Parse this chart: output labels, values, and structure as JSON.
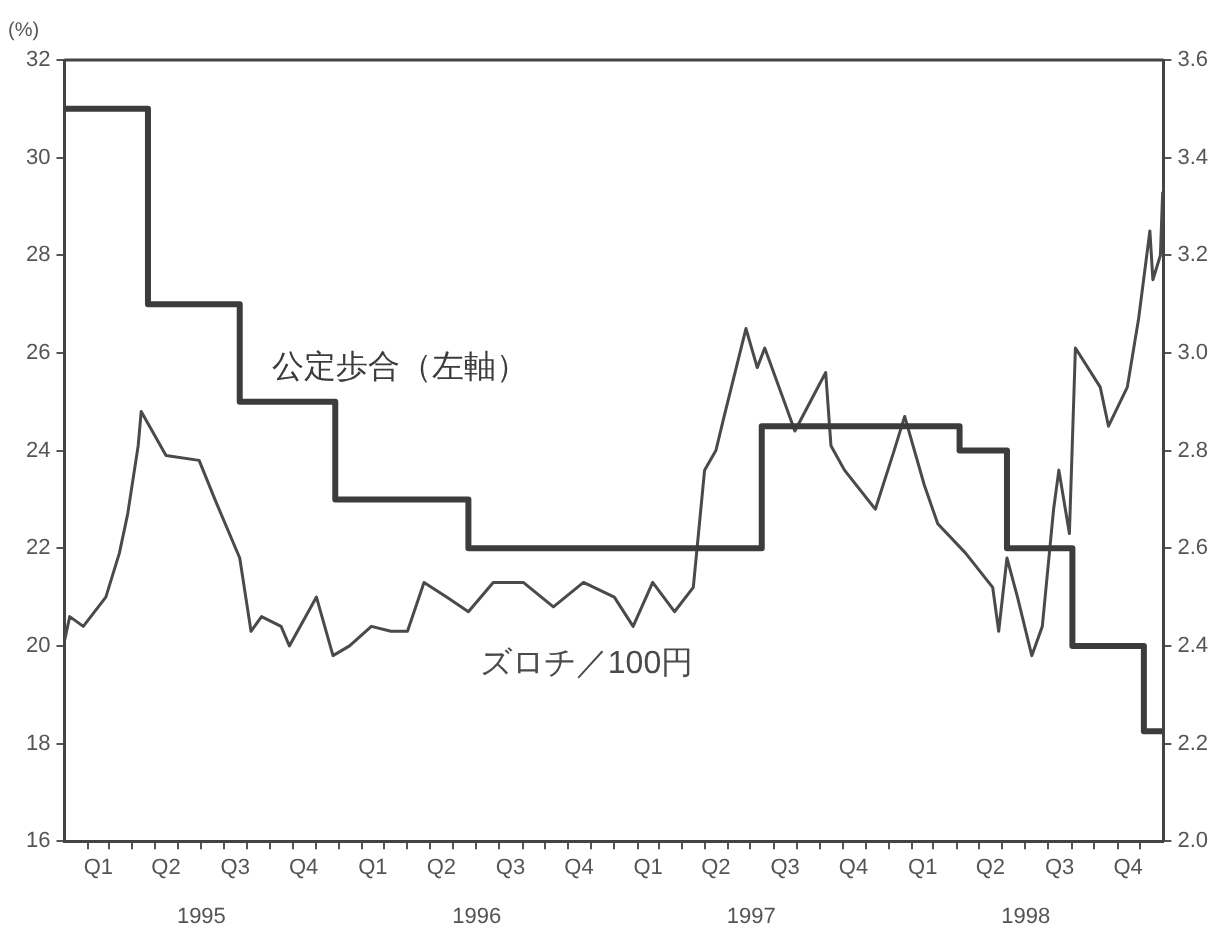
{
  "chart_data": {
    "type": "line",
    "ylabel": "(%)",
    "legend": false,
    "grid": false,
    "xlim": [
      "1995-01-01",
      "1999-01-01"
    ],
    "xticks": [
      {
        "value": "1995-02-15",
        "label": "Q1"
      },
      {
        "value": "1995-05-16",
        "label": "Q2"
      },
      {
        "value": "1995-08-16",
        "label": "Q3"
      },
      {
        "value": "1995-11-15",
        "label": "Q4"
      },
      {
        "value": "1996-02-15",
        "label": "Q1"
      },
      {
        "value": "1996-05-16",
        "label": "Q2"
      },
      {
        "value": "1996-08-16",
        "label": "Q3"
      },
      {
        "value": "1996-11-15",
        "label": "Q4"
      },
      {
        "value": "1997-02-15",
        "label": "Q1"
      },
      {
        "value": "1997-05-16",
        "label": "Q2"
      },
      {
        "value": "1997-08-16",
        "label": "Q3"
      },
      {
        "value": "1997-11-15",
        "label": "Q4"
      },
      {
        "value": "1998-02-15",
        "label": "Q1"
      },
      {
        "value": "1998-05-16",
        "label": "Q2"
      },
      {
        "value": "1998-08-16",
        "label": "Q3"
      },
      {
        "value": "1998-11-15",
        "label": "Q4"
      },
      {
        "value": "1995-02-01",
        "label": null
      },
      {
        "value": "1995-03-01",
        "label": null
      },
      {
        "value": "1995-04-01",
        "label": null
      },
      {
        "value": "1995-05-01",
        "label": null
      },
      {
        "value": "1995-06-01",
        "label": null
      },
      {
        "value": "1995-07-01",
        "label": null
      },
      {
        "value": "1995-08-01",
        "label": null
      },
      {
        "value": "1995-09-01",
        "label": null
      },
      {
        "value": "1995-10-01",
        "label": null
      },
      {
        "value": "1995-11-01",
        "label": null
      },
      {
        "value": "1995-12-01",
        "label": null
      },
      {
        "value": "1996-01-01",
        "label": null
      },
      {
        "value": "1996-02-01",
        "label": null
      },
      {
        "value": "1996-03-01",
        "label": null
      },
      {
        "value": "1996-04-01",
        "label": null
      },
      {
        "value": "1996-05-01",
        "label": null
      },
      {
        "value": "1996-06-01",
        "label": null
      },
      {
        "value": "1996-07-01",
        "label": null
      },
      {
        "value": "1996-08-01",
        "label": null
      },
      {
        "value": "1996-09-01",
        "label": null
      },
      {
        "value": "1996-10-01",
        "label": null
      },
      {
        "value": "1996-11-01",
        "label": null
      },
      {
        "value": "1996-12-01",
        "label": null
      },
      {
        "value": "1997-01-01",
        "label": null
      },
      {
        "value": "1997-02-01",
        "label": null
      },
      {
        "value": "1997-03-01",
        "label": null
      },
      {
        "value": "1997-04-01",
        "label": null
      },
      {
        "value": "1997-05-01",
        "label": null
      },
      {
        "value": "1997-06-01",
        "label": null
      },
      {
        "value": "1997-07-01",
        "label": null
      },
      {
        "value": "1997-08-01",
        "label": null
      },
      {
        "value": "1997-09-01",
        "label": null
      },
      {
        "value": "1997-10-01",
        "label": null
      },
      {
        "value": "1997-11-01",
        "label": null
      },
      {
        "value": "1997-12-01",
        "label": null
      },
      {
        "value": "1998-01-01",
        "label": null
      },
      {
        "value": "1998-02-01",
        "label": null
      },
      {
        "value": "1998-03-01",
        "label": null
      },
      {
        "value": "1998-04-01",
        "label": null
      },
      {
        "value": "1998-05-01",
        "label": null
      },
      {
        "value": "1998-06-01",
        "label": null
      },
      {
        "value": "1998-07-01",
        "label": null
      },
      {
        "value": "1998-08-01",
        "label": null
      },
      {
        "value": "1998-09-01",
        "label": null
      },
      {
        "value": "1998-10-01",
        "label": null
      },
      {
        "value": "1998-11-01",
        "label": null
      },
      {
        "value": "1998-12-01",
        "label": null
      }
    ],
    "x2lim": [
      "1995-01-01",
      "1999-01-01"
    ],
    "x2ticks": [
      {
        "value": "1995-07-02",
        "label": "1995"
      },
      {
        "value": "1996-07-02",
        "label": "1996"
      },
      {
        "value": "1997-07-02",
        "label": "1997"
      },
      {
        "value": "1998-07-02",
        "label": "1998"
      }
    ],
    "ylim": [
      16,
      32
    ],
    "yticks": [
      16,
      18,
      20,
      22,
      24,
      26,
      28,
      30,
      32
    ],
    "y2lim": [
      2,
      3.6
    ],
    "y2ticks": [
      {
        "value": 2,
        "label": "2.0"
      },
      2.2,
      2.4,
      2.6,
      2.8,
      {
        "value": 3,
        "label": "3.0"
      },
      3.2,
      3.4,
      3.6
    ],
    "series": [
      {
        "name": "公定歩合（左軸）",
        "type": "step",
        "color": "#3c3c3c",
        "x": [
          "1995-01-01",
          "1995-04-22",
          "1995-08-22",
          "1995-12-27",
          "1996-06-21",
          "1997-07-16",
          "1998-04-05",
          "1998-06-07",
          "1998-09-02",
          "1998-12-06",
          "1998-12-31"
        ],
        "values": [
          31,
          27,
          25,
          23,
          22,
          24.5,
          24,
          22,
          20,
          18.25,
          18.25
        ]
      },
      {
        "name": "ズロチ／100円",
        "axis": "y2",
        "color": "#4a4a4a",
        "x": [
          "1995-01-01",
          "1995-01-08",
          "1995-01-26",
          "1995-02-25",
          "1995-03-15",
          "1995-03-26",
          "1995-04-09",
          "1995-04-13",
          "1995-05-16",
          "1995-06-29",
          "1995-07-20",
          "1995-08-22",
          "1995-09-06",
          "1995-09-20",
          "1995-10-16",
          "1995-10-27",
          "1995-12-02",
          "1995-12-24",
          "1996-01-15",
          "1996-02-13",
          "1996-03-10",
          "1996-04-01",
          "1996-04-23",
          "1996-05-23",
          "1996-06-21",
          "1996-07-24",
          "1996-09-02",
          "1996-10-12",
          "1996-11-21",
          "1997-01-01",
          "1997-01-26",
          "1997-02-21",
          "1997-03-22",
          "1997-04-16",
          "1997-05-01",
          "1997-05-16",
          "1997-05-27",
          "1997-06-25",
          "1997-07-10",
          "1997-07-20",
          "1997-08-15",
          "1997-08-29",
          "1997-10-09",
          "1997-10-16",
          "1997-11-03",
          "1997-12-14",
          "1998-01-08",
          "1998-01-22",
          "1998-02-17",
          "1998-03-07",
          "1998-04-13",
          "1998-05-19",
          "1998-05-27",
          "1998-06-07",
          "1998-06-21",
          "1998-07-10",
          "1998-07-24",
          "1998-08-08",
          "1998-08-15",
          "1998-08-29",
          "1998-09-06",
          "1998-10-09",
          "1998-10-20",
          "1998-11-14",
          "1998-11-29",
          "1998-12-14",
          "1998-12-18",
          "1998-12-28",
          "1998-12-31"
        ],
        "values": [
          2.41,
          2.46,
          2.44,
          2.5,
          2.59,
          2.67,
          2.81,
          2.88,
          2.79,
          2.78,
          2.7,
          2.58,
          2.43,
          2.46,
          2.44,
          2.4,
          2.5,
          2.38,
          2.4,
          2.44,
          2.43,
          2.43,
          2.53,
          2.5,
          2.47,
          2.53,
          2.53,
          2.48,
          2.53,
          2.5,
          2.44,
          2.53,
          2.47,
          2.52,
          2.76,
          2.8,
          2.87,
          3.05,
          2.97,
          3.01,
          2.9,
          2.84,
          2.96,
          2.81,
          2.76,
          2.68,
          2.8,
          2.87,
          2.73,
          2.65,
          2.59,
          2.52,
          2.43,
          2.58,
          2.5,
          2.38,
          2.44,
          2.68,
          2.76,
          2.63,
          3.01,
          2.93,
          2.85,
          2.93,
          3.07,
          3.25,
          3.15,
          3.2,
          3.33
        ]
      }
    ]
  }
}
